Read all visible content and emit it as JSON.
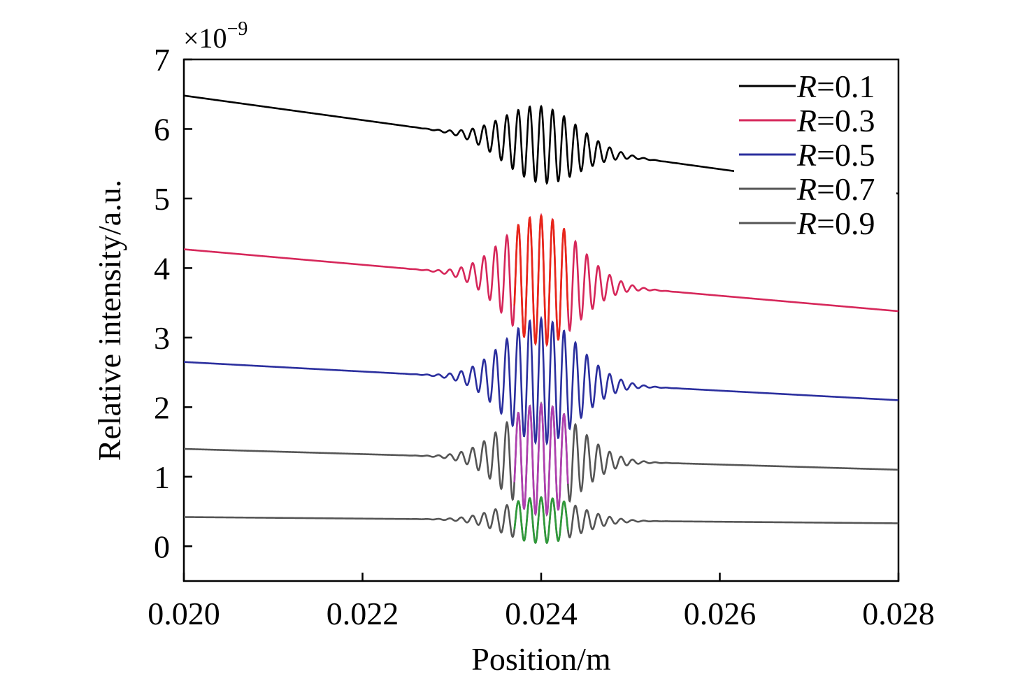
{
  "chart_data": {
    "type": "line",
    "title": "",
    "xlabel": "Position/m",
    "ylabel": "Relative intensity/a.u.",
    "y_multiplier": "×10",
    "y_multiplier_exp": "−9",
    "xlim": [
      0.02,
      0.028
    ],
    "ylim": [
      -0.5,
      7.0
    ],
    "xticks": [
      "0.020",
      "0.022",
      "0.024",
      "0.026",
      "0.028"
    ],
    "xtick_values": [
      0.02,
      0.022,
      0.024,
      0.026,
      0.028
    ],
    "yticks": [
      "0",
      "1",
      "2",
      "3",
      "4",
      "5",
      "6",
      "7"
    ],
    "ytick_values": [
      0,
      1,
      2,
      3,
      4,
      5,
      6,
      7
    ],
    "grid": false,
    "legend_position": "top-right",
    "fringe_center": 0.024,
    "fringe_period": 0.000128,
    "series": [
      {
        "name": "=0.1",
        "legend_var": "R",
        "color": "#000000",
        "start": 6.48,
        "end": 5.07,
        "amplitude": 0.55,
        "envelope_width": 0.00058
      },
      {
        "name": "=0.3",
        "legend_var": "R",
        "color": "#d6275a",
        "center_color": "#e8261a",
        "start": 4.27,
        "end": 3.38,
        "amplitude": 0.93,
        "envelope_width": 0.00058
      },
      {
        "name": "=0.5",
        "legend_var": "R",
        "color": "#2b2f9e",
        "start": 2.65,
        "end": 2.1,
        "amplitude": 0.9,
        "envelope_width": 0.00058
      },
      {
        "name": "=0.7",
        "legend_var": "R",
        "color": "#555555",
        "center_color": "#b03fb0",
        "start": 1.4,
        "end": 1.1,
        "amplitude": 0.8,
        "envelope_width": 0.00058
      },
      {
        "name": "=0.9",
        "legend_var": "R",
        "color": "#555555",
        "center_color": "#2f9a3a",
        "start": 0.42,
        "end": 0.33,
        "amplitude": 0.33,
        "envelope_width": 0.00058
      }
    ]
  }
}
